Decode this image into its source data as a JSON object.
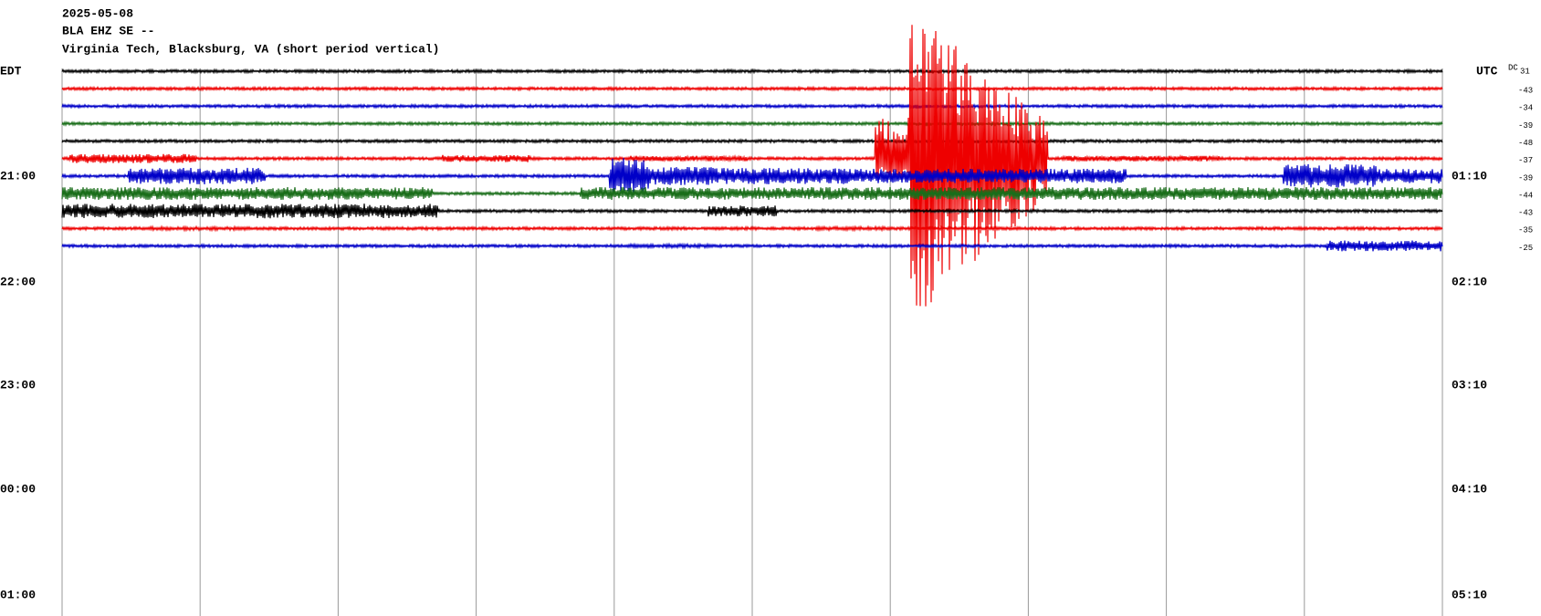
{
  "header": {
    "date": "2025-05-08",
    "station": "BLA EHZ SE --",
    "location": "Virginia Tech, Blacksburg, VA (short period vertical)"
  },
  "left_axis": {
    "zone": "EDT",
    "labels": [
      "21:00",
      "22:00",
      "23:00",
      "00:00",
      "01:00"
    ]
  },
  "right_axis": {
    "zone": "UTC",
    "labels": [
      "01:10",
      "02:10",
      "03:10",
      "04:10",
      "05:10"
    ]
  },
  "dc_offsets": {
    "label": "DC",
    "values": [
      "31",
      "-43",
      "-34",
      "-39",
      "-48",
      "-37",
      "-39",
      "-44",
      "-43",
      "-35",
      "-25"
    ]
  }
}
